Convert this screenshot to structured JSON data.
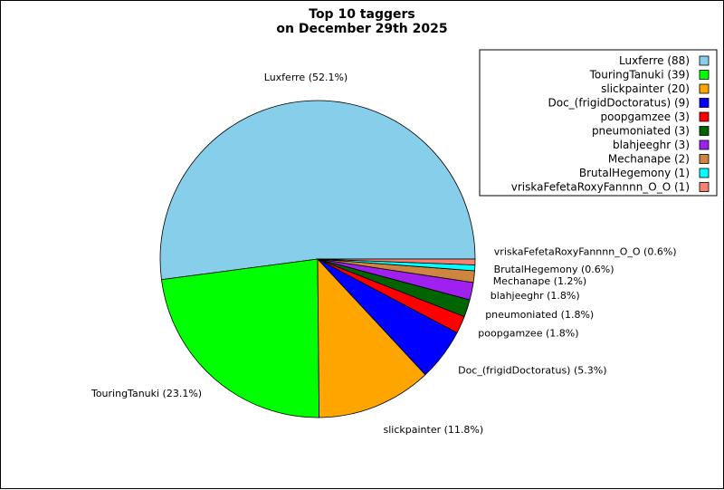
{
  "chart_data": {
    "type": "pie",
    "title": "Top 10 taggers",
    "subtitle": "on December 29th 2025",
    "legend_position": "top-right",
    "slices": [
      {
        "label": "Luxferre",
        "value": 88,
        "percent": "52.1%",
        "color": "#87ceeb"
      },
      {
        "label": "TouringTanuki",
        "value": 39,
        "percent": "23.1%",
        "color": "#00ff00"
      },
      {
        "label": "slickpainter",
        "value": 20,
        "percent": "11.8%",
        "color": "#ffa500"
      },
      {
        "label": "Doc_(frigidDoctoratus)",
        "value": 9,
        "percent": "5.3%",
        "color": "#0000ff"
      },
      {
        "label": "poopgamzee",
        "value": 3,
        "percent": "1.8%",
        "color": "#ff0000"
      },
      {
        "label": "pneumoniated",
        "value": 3,
        "percent": "1.8%",
        "color": "#006400"
      },
      {
        "label": "blahjeeghr",
        "value": 3,
        "percent": "1.8%",
        "color": "#a020f0"
      },
      {
        "label": "Mechanape",
        "value": 2,
        "percent": "1.2%",
        "color": "#cd853f"
      },
      {
        "label": "BrutalHegemony",
        "value": 1,
        "percent": "0.6%",
        "color": "#00ffff"
      },
      {
        "label": "vriskaFefetaRoxyFannnn_O_O",
        "value": 1,
        "percent": "0.6%",
        "color": "#fa8072"
      }
    ]
  }
}
